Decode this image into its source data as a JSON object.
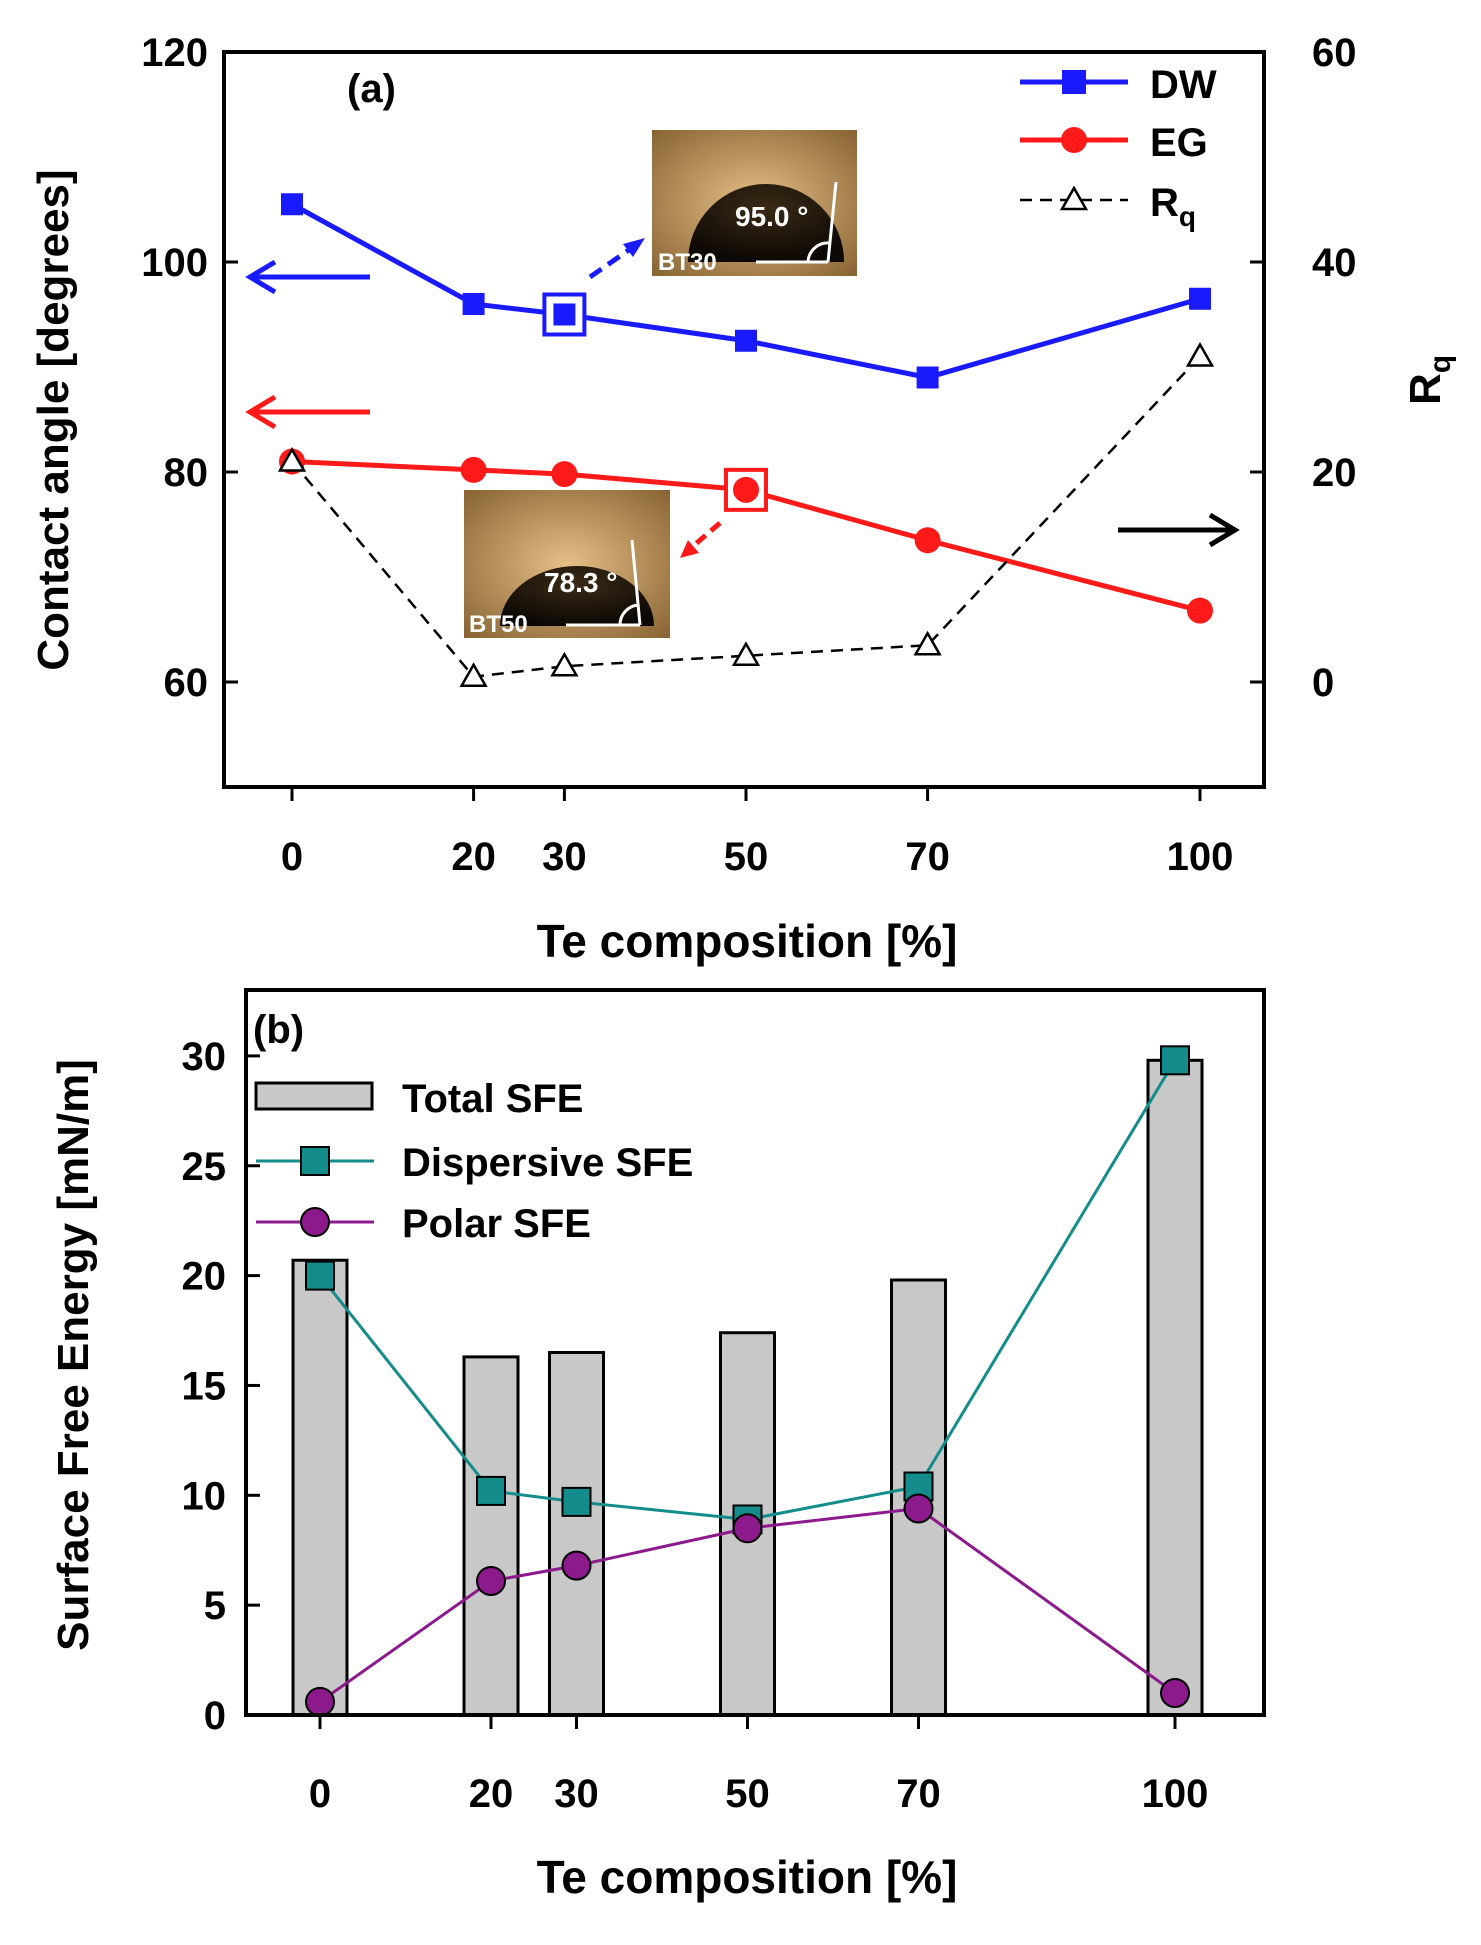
{
  "chart_data": [
    {
      "panel": "(a)",
      "type": "line",
      "xlabel": "Te composition [%]",
      "ylabel": "Contact angle [degrees]",
      "y2label_main": "R",
      "y2label_sub": "q",
      "x": [
        0,
        20,
        30,
        50,
        70,
        100
      ],
      "xticks": [
        "0",
        "20",
        "30",
        "50",
        "70",
        "100"
      ],
      "ylim": [
        50,
        120
      ],
      "yticks": [
        "60",
        "80",
        "100",
        "120"
      ],
      "y2lim": [
        -10,
        60
      ],
      "y2ticks": [
        "0",
        "20",
        "40",
        "60"
      ],
      "series": [
        {
          "name": "DW",
          "axis": "left",
          "color": "#1a1aff",
          "marker": "square",
          "values": [
            105.5,
            96,
            95,
            92.5,
            89,
            96.5
          ]
        },
        {
          "name": "EG",
          "axis": "left",
          "color": "#ff1a1a",
          "marker": "circle",
          "values": [
            81,
            80.2,
            79.8,
            78.3,
            73.5,
            66.8
          ]
        },
        {
          "name_main": "R",
          "name_sub": "q",
          "axis": "right",
          "color": "#000000",
          "marker": "open-triangle",
          "dashed": true,
          "values": [
            21,
            0.5,
            1.5,
            2.5,
            3.5,
            31
          ]
        }
      ],
      "highlights": [
        {
          "series": "DW",
          "x": 30,
          "color": "#1a1aff"
        },
        {
          "series": "EG",
          "x": 50,
          "color": "#ff1a1a"
        }
      ],
      "insets": [
        {
          "label": "BT30",
          "angle": "95.0 °"
        },
        {
          "label": "BT50",
          "angle": "78.3 °"
        }
      ]
    },
    {
      "panel": "(b)",
      "type": "bar",
      "xlabel": "Te composition [%]",
      "ylabel": "Surface Free Energy [mN/m]",
      "x": [
        0,
        20,
        30,
        50,
        70,
        100
      ],
      "xticks": [
        "0",
        "20",
        "30",
        "50",
        "70",
        "100"
      ],
      "ylim": [
        0,
        33
      ],
      "yticks": [
        "0",
        "5",
        "10",
        "15",
        "20",
        "25",
        "30"
      ],
      "series": [
        {
          "name": "Total SFE",
          "kind": "bar",
          "color": "#c8c8c8",
          "values": [
            20.7,
            16.3,
            16.5,
            17.4,
            19.8,
            29.8
          ]
        },
        {
          "name": "Dispersive SFE",
          "kind": "line",
          "color": "#148c8c",
          "marker": "square",
          "values": [
            20.0,
            10.2,
            9.7,
            8.9,
            10.4,
            29.8
          ]
        },
        {
          "name": "Polar SFE",
          "kind": "line",
          "color": "#8c1a8c",
          "marker": "circle",
          "values": [
            0.6,
            6.1,
            6.8,
            8.5,
            9.4,
            1.0
          ]
        }
      ]
    }
  ]
}
